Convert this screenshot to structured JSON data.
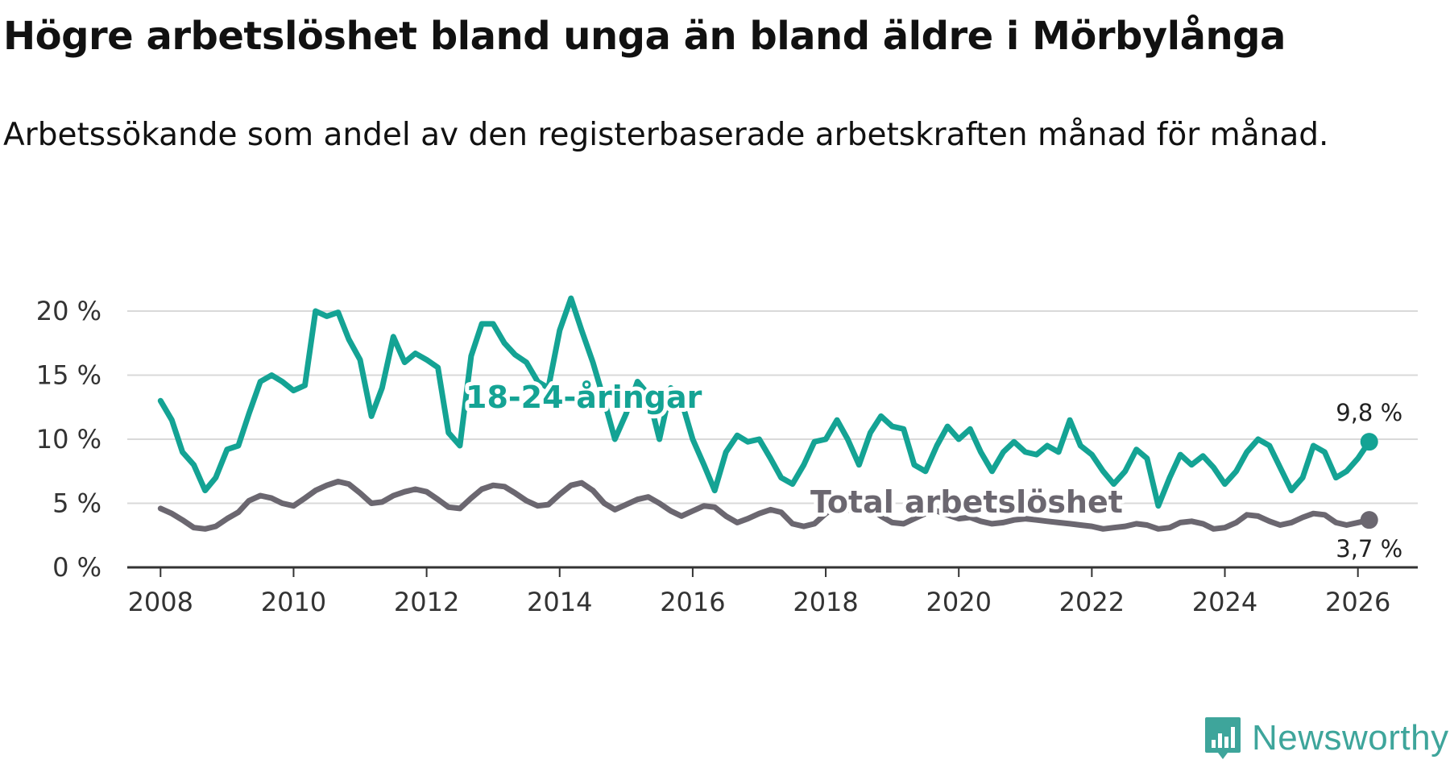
{
  "title": "Högre arbetslöshet bland unga än bland äldre i Mörbylånga",
  "subtitle": "Arbetssökande som andel av den registerbaserade arbetskraften månad för månad.",
  "brand": {
    "name": "Newsworthy"
  },
  "colors": {
    "youth": "#14a394",
    "total": "#6b6770",
    "grid": "#d9d9d9",
    "axis": "#333333"
  },
  "chart_data": {
    "type": "line",
    "title": "Högre arbetslöshet bland unga än bland äldre i Mörbylånga",
    "xlabel": "",
    "ylabel": "",
    "xlim": [
      2007.5,
      2026.9
    ],
    "ylim": [
      0,
      20
    ],
    "grid": true,
    "x_ticks": [
      2008,
      2010,
      2012,
      2014,
      2016,
      2018,
      2020,
      2022,
      2024,
      2026
    ],
    "x_tick_labels": [
      "2008",
      "2010",
      "2012",
      "2014",
      "2016",
      "2018",
      "2020",
      "2022",
      "2024",
      "2026"
    ],
    "y_ticks": [
      0,
      5,
      10,
      15,
      20
    ],
    "y_tick_labels": [
      "0 %",
      "5 %",
      "10 %",
      "15 %",
      "20 %"
    ],
    "series": [
      {
        "name": "18-24-åringar",
        "label": "18-24-åringar",
        "end_label": "9,8 %",
        "points": [
          [
            2008.0,
            13.0
          ],
          [
            2008.17,
            11.5
          ],
          [
            2008.33,
            9.0
          ],
          [
            2008.5,
            8.0
          ],
          [
            2008.67,
            6.0
          ],
          [
            2008.83,
            7.0
          ],
          [
            2009.0,
            9.2
          ],
          [
            2009.17,
            9.5
          ],
          [
            2009.33,
            12.0
          ],
          [
            2009.5,
            14.5
          ],
          [
            2009.67,
            15.0
          ],
          [
            2009.83,
            14.5
          ],
          [
            2010.0,
            13.8
          ],
          [
            2010.17,
            14.2
          ],
          [
            2010.33,
            20.0
          ],
          [
            2010.5,
            19.6
          ],
          [
            2010.67,
            19.9
          ],
          [
            2010.83,
            17.8
          ],
          [
            2011.0,
            16.2
          ],
          [
            2011.17,
            11.8
          ],
          [
            2011.33,
            14.0
          ],
          [
            2011.5,
            18.0
          ],
          [
            2011.67,
            16.0
          ],
          [
            2011.83,
            16.7
          ],
          [
            2012.0,
            16.2
          ],
          [
            2012.17,
            15.6
          ],
          [
            2012.33,
            10.5
          ],
          [
            2012.5,
            9.5
          ],
          [
            2012.67,
            16.5
          ],
          [
            2012.83,
            19.0
          ],
          [
            2013.0,
            19.0
          ],
          [
            2013.17,
            17.5
          ],
          [
            2013.33,
            16.6
          ],
          [
            2013.5,
            16.0
          ],
          [
            2013.67,
            14.5
          ],
          [
            2013.83,
            14.0
          ],
          [
            2014.0,
            18.5
          ],
          [
            2014.17,
            21.0
          ],
          [
            2014.33,
            18.5
          ],
          [
            2014.5,
            16.0
          ],
          [
            2014.67,
            13.0
          ],
          [
            2014.83,
            10.0
          ],
          [
            2015.0,
            12.0
          ],
          [
            2015.17,
            14.5
          ],
          [
            2015.33,
            13.5
          ],
          [
            2015.5,
            10.0
          ],
          [
            2015.67,
            14.0
          ],
          [
            2015.83,
            13.0
          ],
          [
            2016.0,
            10.0
          ],
          [
            2016.17,
            8.0
          ],
          [
            2016.33,
            6.0
          ],
          [
            2016.5,
            9.0
          ],
          [
            2016.67,
            10.3
          ],
          [
            2016.83,
            9.8
          ],
          [
            2017.0,
            10.0
          ],
          [
            2017.17,
            8.5
          ],
          [
            2017.33,
            7.0
          ],
          [
            2017.5,
            6.5
          ],
          [
            2017.67,
            8.0
          ],
          [
            2017.83,
            9.8
          ],
          [
            2018.0,
            10.0
          ],
          [
            2018.17,
            11.5
          ],
          [
            2018.33,
            10.0
          ],
          [
            2018.5,
            8.0
          ],
          [
            2018.67,
            10.5
          ],
          [
            2018.83,
            11.8
          ],
          [
            2019.0,
            11.0
          ],
          [
            2019.17,
            10.8
          ],
          [
            2019.33,
            8.0
          ],
          [
            2019.5,
            7.5
          ],
          [
            2019.67,
            9.5
          ],
          [
            2019.83,
            11.0
          ],
          [
            2020.0,
            10.0
          ],
          [
            2020.17,
            10.8
          ],
          [
            2020.33,
            9.0
          ],
          [
            2020.5,
            7.5
          ],
          [
            2020.67,
            9.0
          ],
          [
            2020.83,
            9.8
          ],
          [
            2021.0,
            9.0
          ],
          [
            2021.17,
            8.8
          ],
          [
            2021.33,
            9.5
          ],
          [
            2021.5,
            9.0
          ],
          [
            2021.67,
            11.5
          ],
          [
            2021.83,
            9.5
          ],
          [
            2022.0,
            8.8
          ],
          [
            2022.17,
            7.5
          ],
          [
            2022.33,
            6.5
          ],
          [
            2022.5,
            7.5
          ],
          [
            2022.67,
            9.2
          ],
          [
            2022.83,
            8.5
          ],
          [
            2023.0,
            4.8
          ],
          [
            2023.17,
            7.0
          ],
          [
            2023.33,
            8.8
          ],
          [
            2023.5,
            8.0
          ],
          [
            2023.67,
            8.7
          ],
          [
            2023.83,
            7.8
          ],
          [
            2024.0,
            6.5
          ],
          [
            2024.17,
            7.5
          ],
          [
            2024.33,
            9.0
          ],
          [
            2024.5,
            10.0
          ],
          [
            2024.67,
            9.5
          ],
          [
            2024.83,
            7.8
          ],
          [
            2025.0,
            6.0
          ],
          [
            2025.17,
            7.0
          ],
          [
            2025.33,
            9.5
          ],
          [
            2025.5,
            9.0
          ],
          [
            2025.67,
            7.0
          ],
          [
            2025.83,
            7.5
          ],
          [
            2026.0,
            8.5
          ],
          [
            2026.17,
            9.8
          ]
        ]
      },
      {
        "name": "Total arbetslöshet",
        "label": "Total arbetslöshet",
        "end_label": "3,7 %",
        "points": [
          [
            2008.0,
            4.6
          ],
          [
            2008.17,
            4.2
          ],
          [
            2008.33,
            3.7
          ],
          [
            2008.5,
            3.1
          ],
          [
            2008.67,
            3.0
          ],
          [
            2008.83,
            3.2
          ],
          [
            2009.0,
            3.8
          ],
          [
            2009.17,
            4.3
          ],
          [
            2009.33,
            5.2
          ],
          [
            2009.5,
            5.6
          ],
          [
            2009.67,
            5.4
          ],
          [
            2009.83,
            5.0
          ],
          [
            2010.0,
            4.8
          ],
          [
            2010.17,
            5.4
          ],
          [
            2010.33,
            6.0
          ],
          [
            2010.5,
            6.4
          ],
          [
            2010.67,
            6.7
          ],
          [
            2010.83,
            6.5
          ],
          [
            2011.0,
            5.8
          ],
          [
            2011.17,
            5.0
          ],
          [
            2011.33,
            5.1
          ],
          [
            2011.5,
            5.6
          ],
          [
            2011.67,
            5.9
          ],
          [
            2011.83,
            6.1
          ],
          [
            2012.0,
            5.9
          ],
          [
            2012.17,
            5.3
          ],
          [
            2012.33,
            4.7
          ],
          [
            2012.5,
            4.6
          ],
          [
            2012.67,
            5.4
          ],
          [
            2012.83,
            6.1
          ],
          [
            2013.0,
            6.4
          ],
          [
            2013.17,
            6.3
          ],
          [
            2013.33,
            5.8
          ],
          [
            2013.5,
            5.2
          ],
          [
            2013.67,
            4.8
          ],
          [
            2013.83,
            4.9
          ],
          [
            2014.0,
            5.7
          ],
          [
            2014.17,
            6.4
          ],
          [
            2014.33,
            6.6
          ],
          [
            2014.5,
            6.0
          ],
          [
            2014.67,
            5.0
          ],
          [
            2014.83,
            4.5
          ],
          [
            2015.0,
            4.9
          ],
          [
            2015.17,
            5.3
          ],
          [
            2015.33,
            5.5
          ],
          [
            2015.5,
            5.0
          ],
          [
            2015.67,
            4.4
          ],
          [
            2015.83,
            4.0
          ],
          [
            2016.0,
            4.4
          ],
          [
            2016.17,
            4.8
          ],
          [
            2016.33,
            4.7
          ],
          [
            2016.5,
            4.0
          ],
          [
            2016.67,
            3.5
          ],
          [
            2016.83,
            3.8
          ],
          [
            2017.0,
            4.2
          ],
          [
            2017.17,
            4.5
          ],
          [
            2017.33,
            4.3
          ],
          [
            2017.5,
            3.4
          ],
          [
            2017.67,
            3.2
          ],
          [
            2017.83,
            3.4
          ],
          [
            2018.0,
            4.2
          ],
          [
            2018.17,
            4.8
          ],
          [
            2018.33,
            4.5
          ],
          [
            2018.5,
            4.3
          ],
          [
            2018.67,
            4.6
          ],
          [
            2018.83,
            4.0
          ],
          [
            2019.0,
            3.5
          ],
          [
            2019.17,
            3.4
          ],
          [
            2019.33,
            3.8
          ],
          [
            2019.5,
            4.2
          ],
          [
            2019.67,
            4.4
          ],
          [
            2019.83,
            4.1
          ],
          [
            2020.0,
            3.8
          ],
          [
            2020.17,
            3.9
          ],
          [
            2020.33,
            3.6
          ],
          [
            2020.5,
            3.4
          ],
          [
            2020.67,
            3.5
          ],
          [
            2020.83,
            3.7
          ],
          [
            2021.0,
            3.8
          ],
          [
            2021.17,
            3.7
          ],
          [
            2021.33,
            3.6
          ],
          [
            2021.5,
            3.5
          ],
          [
            2021.67,
            3.4
          ],
          [
            2021.83,
            3.3
          ],
          [
            2022.0,
            3.2
          ],
          [
            2022.17,
            3.0
          ],
          [
            2022.33,
            3.1
          ],
          [
            2022.5,
            3.2
          ],
          [
            2022.67,
            3.4
          ],
          [
            2022.83,
            3.3
          ],
          [
            2023.0,
            3.0
          ],
          [
            2023.17,
            3.1
          ],
          [
            2023.33,
            3.5
          ],
          [
            2023.5,
            3.6
          ],
          [
            2023.67,
            3.4
          ],
          [
            2023.83,
            3.0
          ],
          [
            2024.0,
            3.1
          ],
          [
            2024.17,
            3.5
          ],
          [
            2024.33,
            4.1
          ],
          [
            2024.5,
            4.0
          ],
          [
            2024.67,
            3.6
          ],
          [
            2024.83,
            3.3
          ],
          [
            2025.0,
            3.5
          ],
          [
            2025.17,
            3.9
          ],
          [
            2025.33,
            4.2
          ],
          [
            2025.5,
            4.1
          ],
          [
            2025.67,
            3.5
          ],
          [
            2025.83,
            3.3
          ],
          [
            2026.0,
            3.5
          ],
          [
            2026.17,
            3.7
          ]
        ]
      }
    ]
  }
}
